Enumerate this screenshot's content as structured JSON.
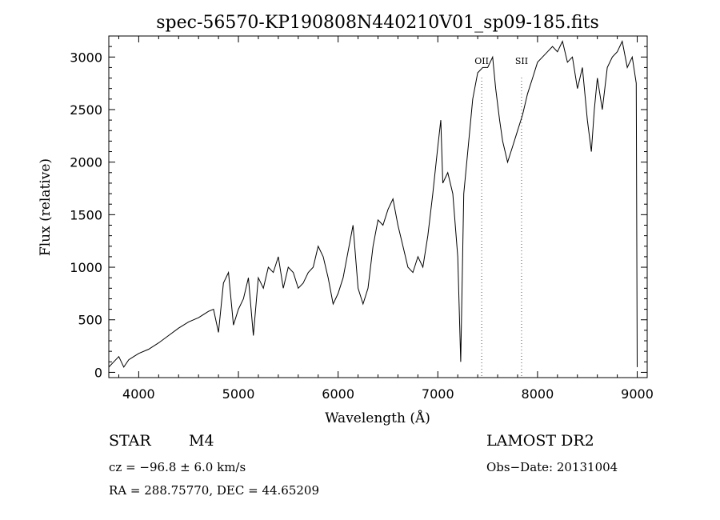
{
  "chart_data": {
    "type": "line",
    "title": "spec-56570-KP190808N440210V01_sp09-185.fits",
    "xlabel": "Wavelength (Å)",
    "ylabel": "Flux (relative)",
    "xlim": [
      3700,
      9100
    ],
    "ylim": [
      -50,
      3200
    ],
    "xticks": [
      4000,
      5000,
      6000,
      7000,
      8000,
      9000
    ],
    "yticks": [
      0,
      500,
      1000,
      1500,
      2000,
      2500,
      3000
    ],
    "xtick_labels": [
      "4000",
      "5000",
      "6000",
      "7000",
      "8000",
      "9000"
    ],
    "ytick_labels": [
      "0",
      "500",
      "1000",
      "1500",
      "2000",
      "2500",
      "3000"
    ],
    "grid": false,
    "series": [
      {
        "x": [
          3700,
          3750,
          3800,
          3850,
          3900,
          3950,
          4000,
          4100,
          4200,
          4300,
          4400,
          4500,
          4600,
          4700,
          4750,
          4800,
          4850,
          4900,
          4950,
          5000,
          5050,
          5100,
          5150,
          5200,
          5250,
          5300,
          5350,
          5400,
          5450,
          5500,
          5550,
          5600,
          5650,
          5700,
          5750,
          5800,
          5850,
          5900,
          5950,
          6000,
          6050,
          6100,
          6150,
          6200,
          6250,
          6300,
          6350,
          6400,
          6450,
          6500,
          6550,
          6600,
          6650,
          6700,
          6750,
          6800,
          6850,
          6900,
          6950,
          7000,
          7030,
          7050,
          7100,
          7150,
          7200,
          7230,
          7260,
          7300,
          7350,
          7400,
          7450,
          7500,
          7550,
          7580,
          7620,
          7650,
          7700,
          7750,
          7800,
          7850,
          7900,
          7950,
          8000,
          8050,
          8100,
          8150,
          8200,
          8250,
          8300,
          8350,
          8400,
          8450,
          8500,
          8540,
          8570,
          8600,
          8650,
          8700,
          8750,
          8800,
          8850,
          8900,
          8950,
          8990,
          9000
        ],
        "y": [
          50,
          100,
          150,
          50,
          120,
          150,
          180,
          220,
          280,
          350,
          420,
          480,
          520,
          580,
          600,
          380,
          850,
          950,
          450,
          600,
          700,
          900,
          350,
          900,
          800,
          1000,
          950,
          1100,
          800,
          1000,
          950,
          800,
          850,
          950,
          1000,
          1200,
          1100,
          900,
          650,
          750,
          900,
          1150,
          1400,
          800,
          650,
          800,
          1200,
          1450,
          1400,
          1550,
          1650,
          1400,
          1200,
          1000,
          950,
          1100,
          1000,
          1300,
          1700,
          2150,
          2400,
          1800,
          1900,
          1700,
          1100,
          100,
          1700,
          2100,
          2600,
          2850,
          2900,
          2900,
          3000,
          2700,
          2400,
          2200,
          2000,
          2150,
          2300,
          2450,
          2650,
          2800,
          2950,
          3000,
          3050,
          3100,
          3050,
          3150,
          2950,
          3000,
          2700,
          2900,
          2400,
          2100,
          2500,
          2800,
          2500,
          2900,
          3000,
          3050,
          3150,
          2900,
          3000,
          2750,
          50
        ]
      }
    ],
    "annotations": [
      {
        "label": "OII",
        "x": 7440
      },
      {
        "label": "SII",
        "x": 7840
      }
    ]
  },
  "info": {
    "class_label": "STAR",
    "subclass": "M4",
    "survey": "LAMOST DR2",
    "redshift": "cz = −96.8 ± 6.0 km/s",
    "obs_date": "Obs−Date: 20131004",
    "coords": "RA = 288.75770, DEC =  44.65209"
  }
}
